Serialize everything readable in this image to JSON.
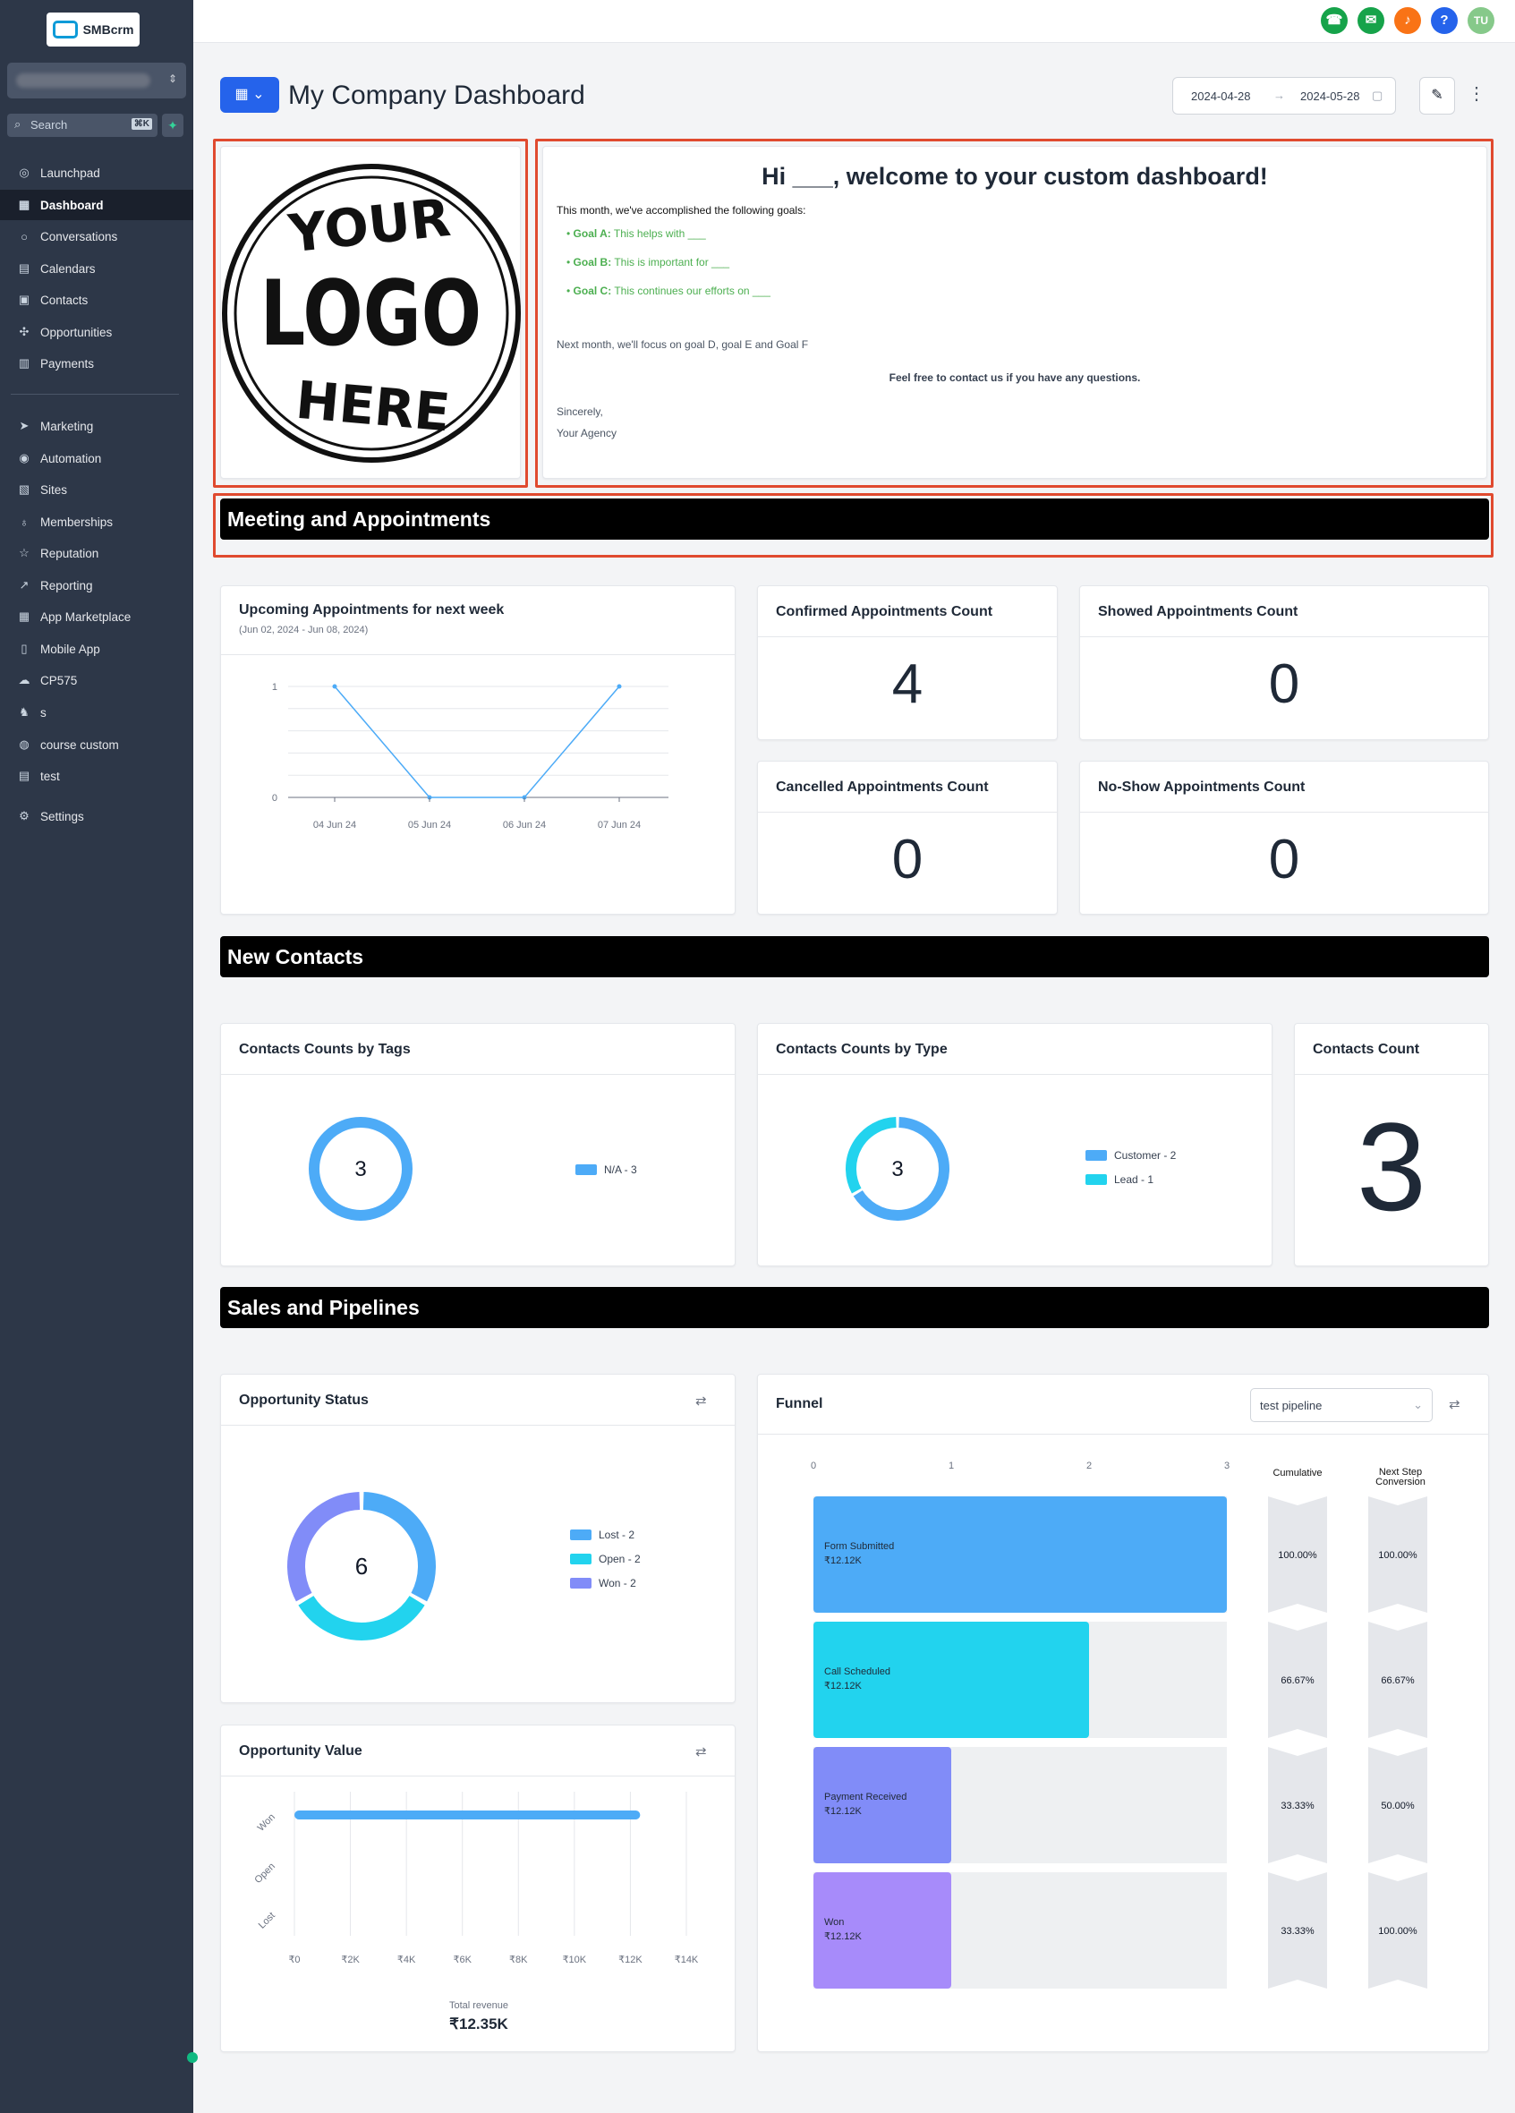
{
  "sidebar": {
    "brand": "SMBcrm",
    "search_placeholder": "Search",
    "search_shortcut": "⌘K",
    "items": [
      {
        "label": "Launchpad",
        "icon": "rocket-icon"
      },
      {
        "label": "Dashboard",
        "icon": "grid-icon",
        "active": true
      },
      {
        "label": "Conversations",
        "icon": "chat-icon"
      },
      {
        "label": "Calendars",
        "icon": "calendar-icon"
      },
      {
        "label": "Contacts",
        "icon": "contacts-icon"
      },
      {
        "label": "Opportunities",
        "icon": "opportunities-icon"
      },
      {
        "label": "Payments",
        "icon": "payments-icon"
      },
      {
        "label": "Marketing",
        "icon": "send-icon"
      },
      {
        "label": "Automation",
        "icon": "automation-icon"
      },
      {
        "label": "Sites",
        "icon": "sites-icon"
      },
      {
        "label": "Memberships",
        "icon": "award-icon"
      },
      {
        "label": "Reputation",
        "icon": "star-icon"
      },
      {
        "label": "Reporting",
        "icon": "trend-icon"
      },
      {
        "label": "App Marketplace",
        "icon": "apps-icon"
      },
      {
        "label": "Mobile App",
        "icon": "phone-icon"
      },
      {
        "label": "CP575",
        "icon": "cloud-icon"
      },
      {
        "label": "s",
        "icon": "cat-icon"
      },
      {
        "label": "course custom",
        "icon": "course-icon"
      },
      {
        "label": "test",
        "icon": "table-icon"
      },
      {
        "label": "Settings",
        "icon": "gear-icon"
      }
    ]
  },
  "header": {
    "title": "My Company Dashboard",
    "date_start": "2024-04-28",
    "date_end": "2024-05-28",
    "user_initials": "TU"
  },
  "colors": {
    "accent": "#2563eb",
    "highlight": "#e04a2f",
    "blue": "#4dabf7",
    "cyan": "#22d3ee",
    "indigo": "#818cf8",
    "purple": "#a78bfa",
    "green_text": "#4caf50"
  },
  "logo_widget": {
    "text": [
      "YOUR",
      "LOGO",
      "HERE"
    ]
  },
  "welcome": {
    "heading": "Hi ___, welcome to your custom dashboard!",
    "intro": "This month, we've accomplished the following goals:",
    "goals": [
      {
        "label": "Goal A:",
        "text": "This helps with ___"
      },
      {
        "label": "Goal B:",
        "text": "This is important for ___"
      },
      {
        "label": "Goal C:",
        "text": "This continues our efforts on ___"
      }
    ],
    "next": "Next month, we'll focus on goal D, goal E and Goal F",
    "contact": "Feel free to contact us if you have any questions.",
    "signoff": "Sincerely,",
    "agency": "Your Agency"
  },
  "sections": {
    "meetings": "Meeting and Appointments",
    "contacts": "New Contacts",
    "sales": "Sales and Pipelines"
  },
  "appointments": {
    "upcoming_title": "Upcoming Appointments for next week",
    "upcoming_sub": "(Jun 02, 2024 - Jun 08, 2024)",
    "confirmed_title": "Confirmed Appointments Count",
    "confirmed": "4",
    "showed_title": "Showed Appointments Count",
    "showed": "0",
    "cancelled_title": "Cancelled Appointments Count",
    "cancelled": "0",
    "noshow_title": "No-Show Appointments Count",
    "noshow": "0"
  },
  "contacts": {
    "tags_title": "Contacts Counts by Tags",
    "tags_total": "3",
    "tags_legend": [
      "N/A - 3"
    ],
    "type_title": "Contacts Counts by Type",
    "type_total": "3",
    "type_legend": [
      "Customer - 2",
      "Lead - 1"
    ],
    "count_title": "Contacts Count",
    "count": "3"
  },
  "opportunity_status": {
    "title": "Opportunity Status",
    "total": "6",
    "legend": [
      "Lost - 2",
      "Open - 2",
      "Won - 2"
    ]
  },
  "opportunity_value": {
    "title": "Opportunity Value",
    "total_label": "Total revenue",
    "total": "₹12.35K"
  },
  "funnel": {
    "title": "Funnel",
    "pipeline": "test pipeline",
    "col_cumulative": "Cumulative",
    "col_next": "Next Step Conversion",
    "stages": [
      {
        "name": "Form Submitted",
        "value": "₹12.12K",
        "count": 3,
        "cumulative": "100.00%",
        "next": "100.00%",
        "color": "#4dabf7"
      },
      {
        "name": "Call Scheduled",
        "value": "₹12.12K",
        "count": 2,
        "cumulative": "66.67%",
        "next": "66.67%",
        "color": "#22d3ee"
      },
      {
        "name": "Payment Received",
        "value": "₹12.12K",
        "count": 1,
        "cumulative": "33.33%",
        "next": "50.00%",
        "color": "#818cf8"
      },
      {
        "name": "Won",
        "value": "₹12.12K",
        "count": 1,
        "cumulative": "33.33%",
        "next": "100.00%",
        "color": "#a78bfa"
      }
    ],
    "axis_ticks": [
      "0",
      "1",
      "2",
      "3"
    ]
  },
  "chart_data": [
    {
      "type": "line",
      "x": [
        "04 Jun 24",
        "05 Jun 24",
        "06 Jun 24",
        "07 Jun 24"
      ],
      "values": [
        1,
        0,
        0,
        1
      ],
      "ylim": [
        0,
        1
      ],
      "yticks": [
        "0",
        "1"
      ]
    },
    {
      "type": "pie",
      "categories": [
        "N/A"
      ],
      "values": [
        3
      ]
    },
    {
      "type": "pie",
      "categories": [
        "Customer",
        "Lead"
      ],
      "values": [
        2,
        1
      ]
    },
    {
      "type": "pie",
      "categories": [
        "Lost",
        "Open",
        "Won"
      ],
      "values": [
        2,
        2,
        2
      ]
    },
    {
      "type": "bar",
      "categories": [
        "Won",
        "Open",
        "Lost"
      ],
      "values": [
        12350,
        0,
        0
      ],
      "xlim": [
        0,
        14000
      ],
      "xticks": [
        "₹0",
        "₹2K",
        "₹4K",
        "₹6K",
        "₹8K",
        "₹10K",
        "₹12K",
        "₹14K"
      ]
    },
    {
      "type": "bar",
      "categories": [
        "Form Submitted",
        "Call Scheduled",
        "Payment Received",
        "Won"
      ],
      "values": [
        3,
        2,
        1,
        1
      ],
      "xlim": [
        0,
        3
      ]
    }
  ]
}
